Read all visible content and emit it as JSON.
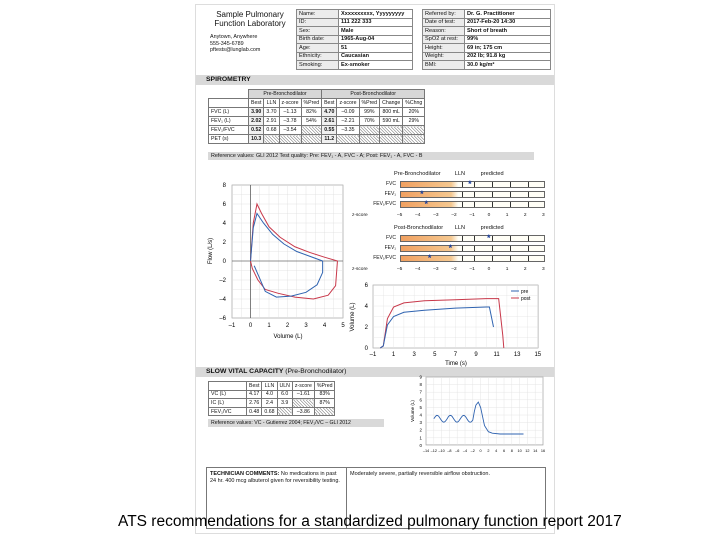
{
  "lab": {
    "name": [
      "Sample Pulmonary",
      "Function Laboratory"
    ],
    "address": [
      "Anytown, Anywhere",
      "555-345-6789",
      "pftests@lunglab.com"
    ]
  },
  "patient_left": [
    {
      "k": "Name:",
      "v": "Xxxxxxxxxx, Yyyyyyyyy"
    },
    {
      "k": "ID:",
      "v": "111 222 333"
    },
    {
      "k": "Sex:",
      "v": "Male"
    },
    {
      "k": "Birth date:",
      "v": "1965-Aug-04"
    },
    {
      "k": "Age:",
      "v": "51"
    },
    {
      "k": "Ethnicity:",
      "v": "Caucasian"
    },
    {
      "k": "Smoking:",
      "v": "Ex-smoker"
    }
  ],
  "patient_right": [
    {
      "k": "Referred by:",
      "v": "Dr. G. Practitioner"
    },
    {
      "k": "Date of test:",
      "v": "2017-Feb-20 14:30"
    },
    {
      "k": "Reason:",
      "v": "Short of breath"
    },
    {
      "k": "SpO2 at rest:",
      "v": "99%"
    },
    {
      "k": "Height:",
      "v": "69 in;    175 cm"
    },
    {
      "k": "Weight:",
      "v": "202 lb;   91.8 kg"
    },
    {
      "k": "BMI:",
      "v": "30.0 kg/m²"
    }
  ],
  "spirometry": {
    "title": "SPIROMETRY",
    "pre_label": "Pre-Bronchodilator",
    "post_label": "Post-Bronchodilator",
    "pre_headers": [
      "Best",
      "LLN",
      "z-score",
      "%Pred"
    ],
    "post_headers": [
      "Best",
      "z-score",
      "%Pred",
      "Change",
      "%Chng"
    ],
    "rows": [
      {
        "label": "FVC (L)",
        "pre": [
          "3.90",
          "3.70",
          "–1.13",
          "82%"
        ],
        "post": [
          "4.70",
          "–0.09",
          "99%",
          "800 mL",
          "20%"
        ]
      },
      {
        "label": "FEV₁ (L)",
        "pre": [
          "2.02",
          "2.91",
          "–3.78",
          "54%"
        ],
        "post": [
          "2.61",
          "–2.21",
          "70%",
          "590 mL",
          "29%"
        ]
      },
      {
        "label": "FEV₁/FVC",
        "pre": [
          "0.52",
          "0.68",
          "–3.54",
          ""
        ],
        "post": [
          "0.55",
          "–3.35",
          "",
          "",
          ""
        ]
      },
      {
        "label": "PET (s)",
        "pre": [
          "10.3",
          "",
          "",
          ""
        ],
        "post": [
          "11.2",
          "",
          "",
          "",
          ""
        ]
      }
    ],
    "reference": "Reference values: GLI 2012   Test quality: Pre: FEV₁ - A, FVC - A; Post: FEV₁ - A, FVC - B"
  },
  "bars": {
    "pre_title": "Pre-Bronchodilator",
    "post_title": "Post-Bronchodilator",
    "lln": "LLN",
    "predicted": "predicted",
    "labels": [
      "FVC",
      "FEV₁",
      "FEV₁/FVC"
    ],
    "zscale_label": "z-score",
    "zticks": [
      "–5",
      "–4",
      "–3",
      "–2",
      "–1",
      "0",
      "1",
      "2",
      "3"
    ],
    "pre_z": [
      -1.13,
      -3.78,
      -3.54
    ],
    "post_z": [
      -0.09,
      -2.21,
      -3.35
    ]
  },
  "flow_volume": {
    "ylabel": "Flow (L/s)",
    "xlabel": "Volume (L)",
    "yticks": [
      "8",
      "6",
      "4",
      "2",
      "0",
      "–2",
      "–4",
      "–6"
    ],
    "xticks": [
      "–1",
      "0",
      "1",
      "2",
      "3",
      "4",
      "5"
    ]
  },
  "volume_time": {
    "ylabel": "Volume (L)",
    "xlabel": "Time (s)",
    "yticks": [
      "6",
      "4",
      "2",
      "0"
    ],
    "xticks": [
      "–1",
      "1",
      "3",
      "5",
      "7",
      "9",
      "11",
      "13",
      "15"
    ],
    "legend": [
      "pre",
      "post"
    ]
  },
  "colors": {
    "pre": "#2f63b0",
    "post": "#c8384a"
  },
  "svc": {
    "title": "SLOW VITAL CAPACITY",
    "subtitle": "(Pre-Bronchodilator)",
    "headers": [
      "Best",
      "LLN",
      "ULN",
      "z-score",
      "%Pred"
    ],
    "rows": [
      {
        "label": "VC (L)",
        "cells": [
          "4.17",
          "4.0",
          "6.0",
          "–1.61",
          "83%"
        ]
      },
      {
        "label": "IC (L)",
        "cells": [
          "2.76",
          "2.4",
          "3.9",
          "",
          "87%"
        ]
      },
      {
        "label": "FEV₁/VC",
        "cells": [
          "0.48",
          "0.68",
          "",
          "–3.86",
          ""
        ]
      }
    ],
    "reference": "Reference values: VC - Gutierrez 2004; FEV₁/VC – GLI 2012",
    "chart_ylabel": "Volume (L)",
    "chart_yticks": [
      "9",
      "8",
      "7",
      "6",
      "5",
      "4",
      "3",
      "2",
      "1",
      "0"
    ],
    "chart_xticks": [
      "–14",
      "–12",
      "–10",
      "–8",
      "–6",
      "–4",
      "–2",
      "0",
      "2",
      "4",
      "6",
      "8",
      "10",
      "12",
      "14",
      "16"
    ]
  },
  "comments": {
    "label": "TECHNICIAN COMMENTS:",
    "text": " No medications in past 24 hr. 400 mcg albuterol given for reversibility testing.",
    "interpretation": "Moderately severe, partially reversible airflow obstruction."
  },
  "caption": "ATS recommendations for a standardized pulmonary function report 2017"
}
